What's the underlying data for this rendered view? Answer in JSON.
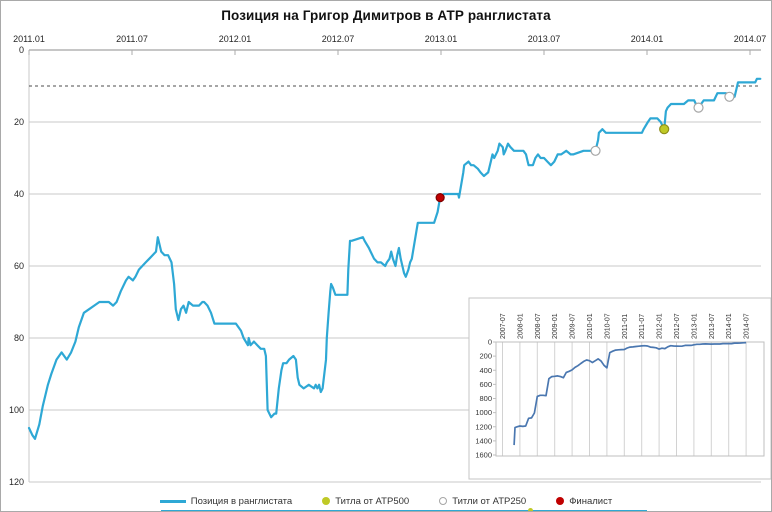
{
  "chart_data": {
    "type": "line",
    "title": "Позиция на Григор Димитров в АТР ранглистата",
    "main": {
      "x_ticks": [
        "2011.01",
        "2011.07",
        "2012.01",
        "2012.07",
        "2013.01",
        "2013.07",
        "2014.01",
        "2014.07"
      ],
      "y_ticks": [
        0,
        20,
        40,
        60,
        80,
        100,
        120
      ],
      "ylim": [
        0,
        120
      ],
      "y_axis_inverted": true,
      "grid": "horizontal",
      "dashed_reference_rank": 10,
      "line_color": "#2EA8D5",
      "series_name": "Позиция в ранглистата",
      "series": [
        [
          0,
          105
        ],
        [
          0.2,
          107
        ],
        [
          0.35,
          108
        ],
        [
          0.6,
          104
        ],
        [
          0.8,
          99
        ],
        [
          1.1,
          93
        ],
        [
          1.3,
          90
        ],
        [
          1.6,
          86
        ],
        [
          1.9,
          84
        ],
        [
          2.2,
          86
        ],
        [
          2.45,
          84
        ],
        [
          2.7,
          81
        ],
        [
          2.9,
          77
        ],
        [
          3.2,
          73
        ],
        [
          3.5,
          72
        ],
        [
          3.8,
          71
        ],
        [
          4.1,
          70
        ],
        [
          4.4,
          70
        ],
        [
          4.65,
          70
        ],
        [
          4.9,
          71
        ],
        [
          5.1,
          70
        ],
        [
          5.35,
          67
        ],
        [
          5.65,
          64
        ],
        [
          5.8,
          63
        ],
        [
          6.05,
          64
        ],
        [
          6.2,
          63
        ],
        [
          6.4,
          61
        ],
        [
          6.6,
          60
        ],
        [
          6.8,
          59
        ],
        [
          7,
          58
        ],
        [
          7.2,
          57
        ],
        [
          7.4,
          56
        ],
        [
          7.5,
          52
        ],
        [
          7.7,
          56
        ],
        [
          7.9,
          57
        ],
        [
          8.1,
          57
        ],
        [
          8.3,
          59
        ],
        [
          8.45,
          65
        ],
        [
          8.55,
          72
        ],
        [
          8.7,
          75
        ],
        [
          8.85,
          72
        ],
        [
          9,
          71
        ],
        [
          9.15,
          73
        ],
        [
          9.3,
          70
        ],
        [
          9.55,
          71
        ],
        [
          9.9,
          71
        ],
        [
          10.1,
          70
        ],
        [
          10.2,
          70
        ],
        [
          10.4,
          71
        ],
        [
          10.6,
          73
        ],
        [
          10.8,
          76
        ],
        [
          12.05,
          76
        ],
        [
          12.35,
          78
        ],
        [
          12.5,
          80
        ],
        [
          12.75,
          82
        ],
        [
          12.8,
          80
        ],
        [
          12.9,
          82
        ],
        [
          13.1,
          81
        ],
        [
          13.3,
          82
        ],
        [
          13.5,
          83
        ],
        [
          13.7,
          83
        ],
        [
          13.8,
          85
        ],
        [
          13.9,
          100
        ],
        [
          14.1,
          102
        ],
        [
          14.3,
          101
        ],
        [
          14.4,
          101
        ],
        [
          14.55,
          94
        ],
        [
          14.7,
          89
        ],
        [
          14.8,
          87
        ],
        [
          15,
          87
        ],
        [
          15.15,
          86
        ],
        [
          15.4,
          85
        ],
        [
          15.55,
          86
        ],
        [
          15.65,
          91
        ],
        [
          15.75,
          93
        ],
        [
          16,
          94
        ],
        [
          16.3,
          93
        ],
        [
          16.6,
          94
        ],
        [
          16.7,
          93
        ],
        [
          16.8,
          94
        ],
        [
          16.9,
          93
        ],
        [
          17,
          95
        ],
        [
          17.1,
          94
        ],
        [
          17.3,
          86
        ],
        [
          17.35,
          80
        ],
        [
          17.45,
          73
        ],
        [
          17.55,
          67
        ],
        [
          17.6,
          65
        ],
        [
          17.7,
          66
        ],
        [
          17.85,
          68
        ],
        [
          18.3,
          68
        ],
        [
          18.55,
          68
        ],
        [
          18.6,
          61
        ],
        [
          18.7,
          53
        ],
        [
          18.8,
          53
        ],
        [
          19.45,
          52
        ],
        [
          19.55,
          53
        ],
        [
          19.8,
          55
        ],
        [
          19.9,
          56
        ],
        [
          20.1,
          58
        ],
        [
          20.3,
          59
        ],
        [
          20.5,
          59
        ],
        [
          20.75,
          60
        ],
        [
          20.85,
          59
        ],
        [
          21,
          58
        ],
        [
          21.1,
          56
        ],
        [
          21.2,
          58
        ],
        [
          21.35,
          60
        ],
        [
          21.45,
          57
        ],
        [
          21.55,
          55
        ],
        [
          21.65,
          58
        ],
        [
          21.75,
          60
        ],
        [
          21.85,
          62
        ],
        [
          21.95,
          63
        ],
        [
          22.1,
          61
        ],
        [
          22.2,
          59
        ],
        [
          22.3,
          58
        ],
        [
          22.65,
          48
        ],
        [
          22.85,
          48
        ],
        [
          23.3,
          48
        ],
        [
          23.6,
          48
        ],
        [
          23.8,
          45
        ],
        [
          23.95,
          41
        ],
        [
          24.15,
          40
        ],
        [
          24.7,
          40
        ],
        [
          25,
          40
        ],
        [
          25.05,
          41
        ],
        [
          25.3,
          34
        ],
        [
          25.35,
          32
        ],
        [
          25.6,
          31
        ],
        [
          25.75,
          32
        ],
        [
          25.9,
          32
        ],
        [
          26.15,
          33
        ],
        [
          26.3,
          34
        ],
        [
          26.5,
          35
        ],
        [
          26.75,
          34
        ],
        [
          26.9,
          31
        ],
        [
          27,
          29
        ],
        [
          27.1,
          30
        ],
        [
          27.3,
          28
        ],
        [
          27.4,
          26
        ],
        [
          27.6,
          27
        ],
        [
          27.65,
          29
        ],
        [
          27.75,
          28
        ],
        [
          27.9,
          26
        ],
        [
          28.05,
          27
        ],
        [
          28.25,
          28
        ],
        [
          28.45,
          28
        ],
        [
          28.8,
          28
        ],
        [
          28.95,
          29
        ],
        [
          29.05,
          31
        ],
        [
          29.1,
          32
        ],
        [
          29.35,
          32
        ],
        [
          29.5,
          30
        ],
        [
          29.65,
          29
        ],
        [
          29.8,
          30
        ],
        [
          30,
          30
        ],
        [
          30.2,
          31
        ],
        [
          30.4,
          32
        ],
        [
          30.6,
          31
        ],
        [
          30.8,
          29
        ],
        [
          31,
          29
        ],
        [
          31.3,
          28
        ],
        [
          31.55,
          29
        ],
        [
          31.7,
          29
        ],
        [
          32.3,
          28
        ],
        [
          32.7,
          28
        ],
        [
          33,
          28
        ],
        [
          33.15,
          25
        ],
        [
          33.2,
          23
        ],
        [
          33.4,
          22
        ],
        [
          33.6,
          23
        ],
        [
          33.8,
          23
        ],
        [
          34.5,
          23
        ],
        [
          35.7,
          23
        ],
        [
          35.8,
          22
        ],
        [
          36.05,
          20
        ],
        [
          36.2,
          19
        ],
        [
          36.4,
          19
        ],
        [
          36.6,
          19
        ],
        [
          36.8,
          20
        ],
        [
          36.9,
          21
        ],
        [
          37,
          22
        ],
        [
          37.1,
          17
        ],
        [
          37.2,
          16
        ],
        [
          37.4,
          15
        ],
        [
          37.55,
          15
        ],
        [
          37.8,
          15
        ],
        [
          38,
          15
        ],
        [
          38.15,
          15
        ],
        [
          38.4,
          14
        ],
        [
          38.55,
          14
        ],
        [
          38.75,
          14
        ],
        [
          38.85,
          15
        ],
        [
          39,
          16
        ],
        [
          39.15,
          15
        ],
        [
          39.3,
          14
        ],
        [
          39.55,
          14
        ],
        [
          39.7,
          14
        ],
        [
          39.9,
          14
        ],
        [
          40.1,
          12
        ],
        [
          40.2,
          12
        ],
        [
          40.4,
          12
        ],
        [
          40.6,
          12
        ],
        [
          40.8,
          13
        ],
        [
          40.9,
          13
        ],
        [
          41.1,
          13
        ],
        [
          41.2,
          11
        ],
        [
          41.3,
          9
        ],
        [
          41.35,
          9
        ],
        [
          41.6,
          9
        ],
        [
          41.8,
          9
        ],
        [
          42,
          9
        ],
        [
          42.2,
          9
        ],
        [
          42.3,
          9
        ],
        [
          42.4,
          8
        ],
        [
          42.5,
          8
        ],
        [
          42.6,
          8
        ]
      ],
      "markers": [
        {
          "type": "finalist",
          "t": 23.95,
          "rank": 41,
          "date": "2013-01"
        },
        {
          "type": "atp250",
          "t": 33,
          "rank": 28,
          "date": "2013-10"
        },
        {
          "type": "atp500",
          "t": 37,
          "rank": 22,
          "date": "2014-02"
        },
        {
          "type": "atp250",
          "t": 39,
          "rank": 16,
          "date": "2014-04"
        },
        {
          "type": "atp250",
          "t": 40.8,
          "rank": 13,
          "date": "2014-06"
        }
      ],
      "marker_styles": {
        "finalist": {
          "fill": "#C00000",
          "stroke": "#7F0000",
          "r": 4
        },
        "atp500": {
          "fill": "#BFC926",
          "stroke": "#8E8E1C",
          "r": 4.5
        },
        "atp250": {
          "fill": "#FFFFFF",
          "stroke": "#A6A6A6",
          "r": 4.5
        }
      }
    },
    "inset": {
      "x_ticks": [
        "2007-07",
        "2008-01",
        "2008-07",
        "2009-01",
        "2009-07",
        "2010-01",
        "2010-07",
        "2011-01",
        "2011-07",
        "2012-01",
        "2012-07",
        "2013-01",
        "2013-07",
        "2014-01",
        "2014-07"
      ],
      "y_ticks": [
        0,
        200,
        400,
        600,
        800,
        1000,
        1200,
        1400,
        1600
      ],
      "ylim": [
        0,
        1600
      ],
      "y_axis_inverted": true,
      "grid": "vertical",
      "line_color": "#4A77B0",
      "series": [
        [
          4,
          1460
        ],
        [
          4.3,
          1210
        ],
        [
          5,
          1200
        ],
        [
          6,
          1190
        ],
        [
          7,
          1195
        ],
        [
          8,
          1190
        ],
        [
          9,
          1080
        ],
        [
          10,
          1075
        ],
        [
          11,
          1005
        ],
        [
          12,
          770
        ],
        [
          13,
          755
        ],
        [
          14,
          755
        ],
        [
          15,
          760
        ],
        [
          16,
          520
        ],
        [
          17,
          490
        ],
        [
          18,
          485
        ],
        [
          19,
          480
        ],
        [
          20,
          490
        ],
        [
          21,
          505
        ],
        [
          22,
          430
        ],
        [
          23,
          415
        ],
        [
          24,
          395
        ],
        [
          25,
          360
        ],
        [
          26,
          335
        ],
        [
          27,
          305
        ],
        [
          28,
          275
        ],
        [
          29,
          255
        ],
        [
          30,
          265
        ],
        [
          31,
          290
        ],
        [
          32,
          265
        ],
        [
          33,
          240
        ],
        [
          34,
          270
        ],
        [
          35,
          330
        ],
        [
          36,
          365
        ],
        [
          37,
          150
        ],
        [
          38,
          130
        ],
        [
          39,
          115
        ],
        [
          40,
          110
        ],
        [
          41,
          108
        ],
        [
          42,
          106
        ],
        [
          43,
          85
        ],
        [
          44,
          72
        ],
        [
          45,
          70
        ],
        [
          46,
          64
        ],
        [
          47,
          60
        ],
        [
          48,
          55
        ],
        [
          49,
          53
        ],
        [
          50,
          57
        ],
        [
          51,
          72
        ],
        [
          52,
          76
        ],
        [
          53,
          82
        ],
        [
          54,
          100
        ],
        [
          55,
          88
        ],
        [
          56,
          94
        ],
        [
          57,
          68
        ],
        [
          58,
          53
        ],
        [
          59,
          57
        ],
        [
          60,
          58
        ],
        [
          61,
          60
        ],
        [
          62,
          58
        ],
        [
          63,
          48
        ],
        [
          64,
          48
        ],
        [
          65,
          48
        ],
        [
          66,
          40
        ],
        [
          67,
          32
        ],
        [
          68,
          32
        ],
        [
          69,
          28
        ],
        [
          70,
          27
        ],
        [
          71,
          29
        ],
        [
          72,
          30
        ],
        [
          73,
          29
        ],
        [
          74,
          28
        ],
        [
          75,
          28
        ],
        [
          76,
          23
        ],
        [
          77,
          23
        ],
        [
          78,
          23
        ],
        [
          79,
          22
        ],
        [
          80,
          16
        ],
        [
          81,
          15
        ],
        [
          82,
          14
        ],
        [
          83,
          12
        ],
        [
          84,
          9
        ]
      ]
    }
  },
  "header": {
    "title": "Позиция на Григор Димитров в АТР ранглистата"
  },
  "legend": {
    "items": [
      {
        "label": "Позиция в ранглистата"
      },
      {
        "label": "Титла  от ATP500"
      },
      {
        "label": "Титли от ATP250"
      },
      {
        "label": "Финалист"
      }
    ]
  },
  "colors": {
    "ranking_line": "#2EA8D5",
    "inset_line": "#4A77B0",
    "finalist_marker": "#C00000",
    "atp500_marker": "#BFC926",
    "atp250_marker_stroke": "#A6A6A6",
    "gridline": "#C9C9C9",
    "axis": "#8C8C8C",
    "dashed_line": "#4D4D4D"
  }
}
